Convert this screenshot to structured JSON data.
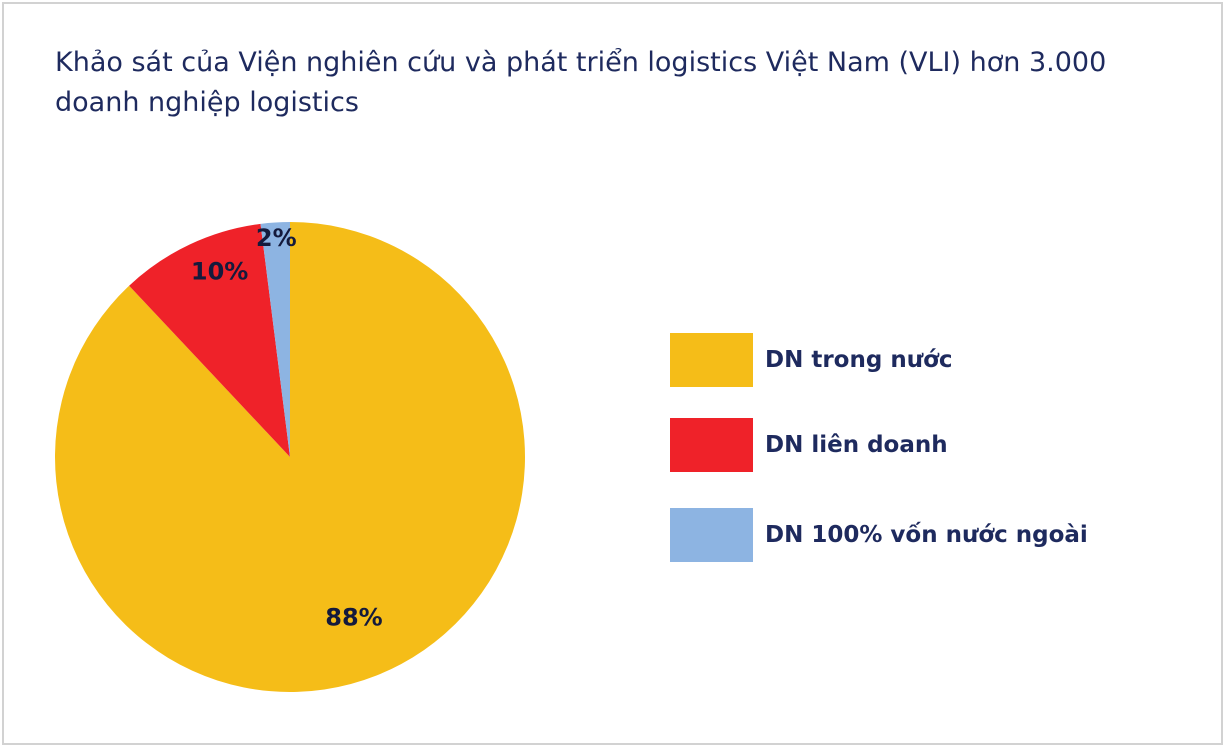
{
  "title": "Khảo sát của Viện nghiên cứu và phát triển logistics Việt Nam (VLI) hơn 3.000 doanh nghiệp logistics",
  "chart_data": {
    "type": "pie",
    "title": "Khảo sát của Viện nghiên cứu và phát triển logistics Việt Nam (VLI) hơn 3.000 doanh nghiệp logistics",
    "categories": [
      "DN trong nước",
      "DN liên doanh",
      "DN 100% vốn nước ngoài"
    ],
    "values": [
      88,
      10,
      2
    ],
    "labels": [
      "88%",
      "10%",
      "2%"
    ],
    "colors": [
      "#f5bd18",
      "#ef2229",
      "#8db4e2"
    ],
    "legend_position": "right"
  }
}
